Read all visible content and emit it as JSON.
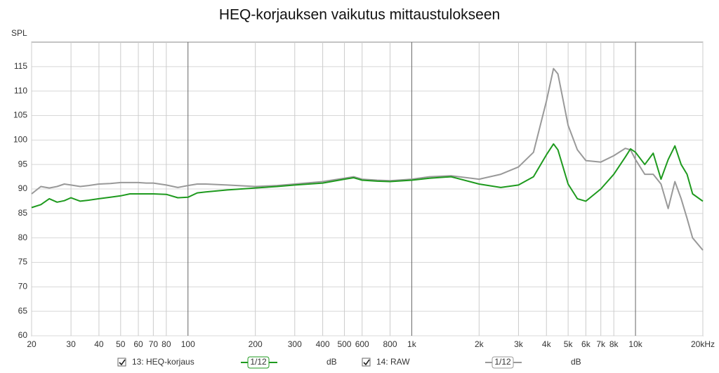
{
  "chart_data": {
    "type": "line",
    "title": "HEQ-korjauksen vaikutus mittaustulokseen",
    "ylabel": "SPL",
    "xscale": "log",
    "x": [
      20,
      22,
      24,
      26,
      28,
      30,
      33,
      36,
      40,
      45,
      50,
      55,
      60,
      65,
      70,
      80,
      90,
      100,
      110,
      120,
      150,
      200,
      250,
      300,
      400,
      500,
      550,
      600,
      700,
      800,
      1000,
      1200,
      1500,
      2000,
      2500,
      3000,
      3500,
      4000,
      4300,
      4500,
      5000,
      5500,
      6000,
      7000,
      8000,
      9000,
      9500,
      10000,
      11000,
      12000,
      13000,
      14000,
      15000,
      16000,
      17000,
      18000,
      20000
    ],
    "series": [
      {
        "name": "13: HEQ-korjaus",
        "color": "#1e9a1e",
        "values": [
          86.2,
          86.8,
          88,
          87.3,
          87.6,
          88.2,
          87.5,
          87.7,
          88,
          88.3,
          88.6,
          89,
          89,
          89,
          89,
          88.9,
          88.2,
          88.3,
          89.2,
          89.4,
          89.8,
          90.2,
          90.5,
          90.8,
          91.2,
          92,
          92.3,
          91.8,
          91.6,
          91.5,
          91.8,
          92.2,
          92.5,
          91,
          90.3,
          90.8,
          92.5,
          97,
          99.2,
          98,
          91,
          88,
          87.5,
          90,
          93,
          96.5,
          98.2,
          97.5,
          95,
          97.3,
          92,
          96,
          98.8,
          95,
          93,
          89,
          87.5
        ]
      },
      {
        "name": "14: RAW",
        "color": "#999999",
        "values": [
          89,
          90.5,
          90.2,
          90.5,
          91,
          90.8,
          90.5,
          90.7,
          91,
          91.1,
          91.3,
          91.3,
          91.3,
          91.2,
          91.2,
          90.8,
          90.3,
          90.7,
          91,
          91,
          90.8,
          90.5,
          90.7,
          91,
          91.5,
          92.2,
          92.5,
          92,
          91.8,
          91.7,
          92,
          92.5,
          92.7,
          92,
          93,
          94.5,
          97.5,
          108,
          114.6,
          113.5,
          103,
          98,
          95.8,
          95.5,
          96.8,
          98.3,
          98,
          96,
          93,
          93,
          91,
          86,
          91.5,
          88,
          84,
          80,
          77.5
        ]
      }
    ],
    "xlim": [
      20,
      20000
    ],
    "ylim": [
      60,
      120
    ],
    "xticks": [
      20,
      30,
      40,
      50,
      60,
      70,
      80,
      100,
      200,
      300,
      400,
      500,
      600,
      800,
      {
        "value": 1000,
        "label": "1k"
      },
      {
        "value": 2000,
        "label": "2k"
      },
      {
        "value": 3000,
        "label": "3k"
      },
      {
        "value": 4000,
        "label": "4k"
      },
      {
        "value": 5000,
        "label": "5k"
      },
      {
        "value": 6000,
        "label": "6k"
      },
      {
        "value": 7000,
        "label": "7k"
      },
      {
        "value": 8000,
        "label": "8k"
      },
      {
        "value": 10000,
        "label": "10k"
      },
      {
        "value": 20000,
        "label": "20kHz"
      }
    ],
    "yticks": [
      60,
      65,
      70,
      75,
      80,
      85,
      90,
      95,
      100,
      105,
      110,
      115
    ],
    "grid": true,
    "legend": [
      {
        "smoothing": "1/12",
        "unit": "dB"
      },
      {
        "smoothing": "1/12",
        "unit": "dB"
      }
    ]
  }
}
